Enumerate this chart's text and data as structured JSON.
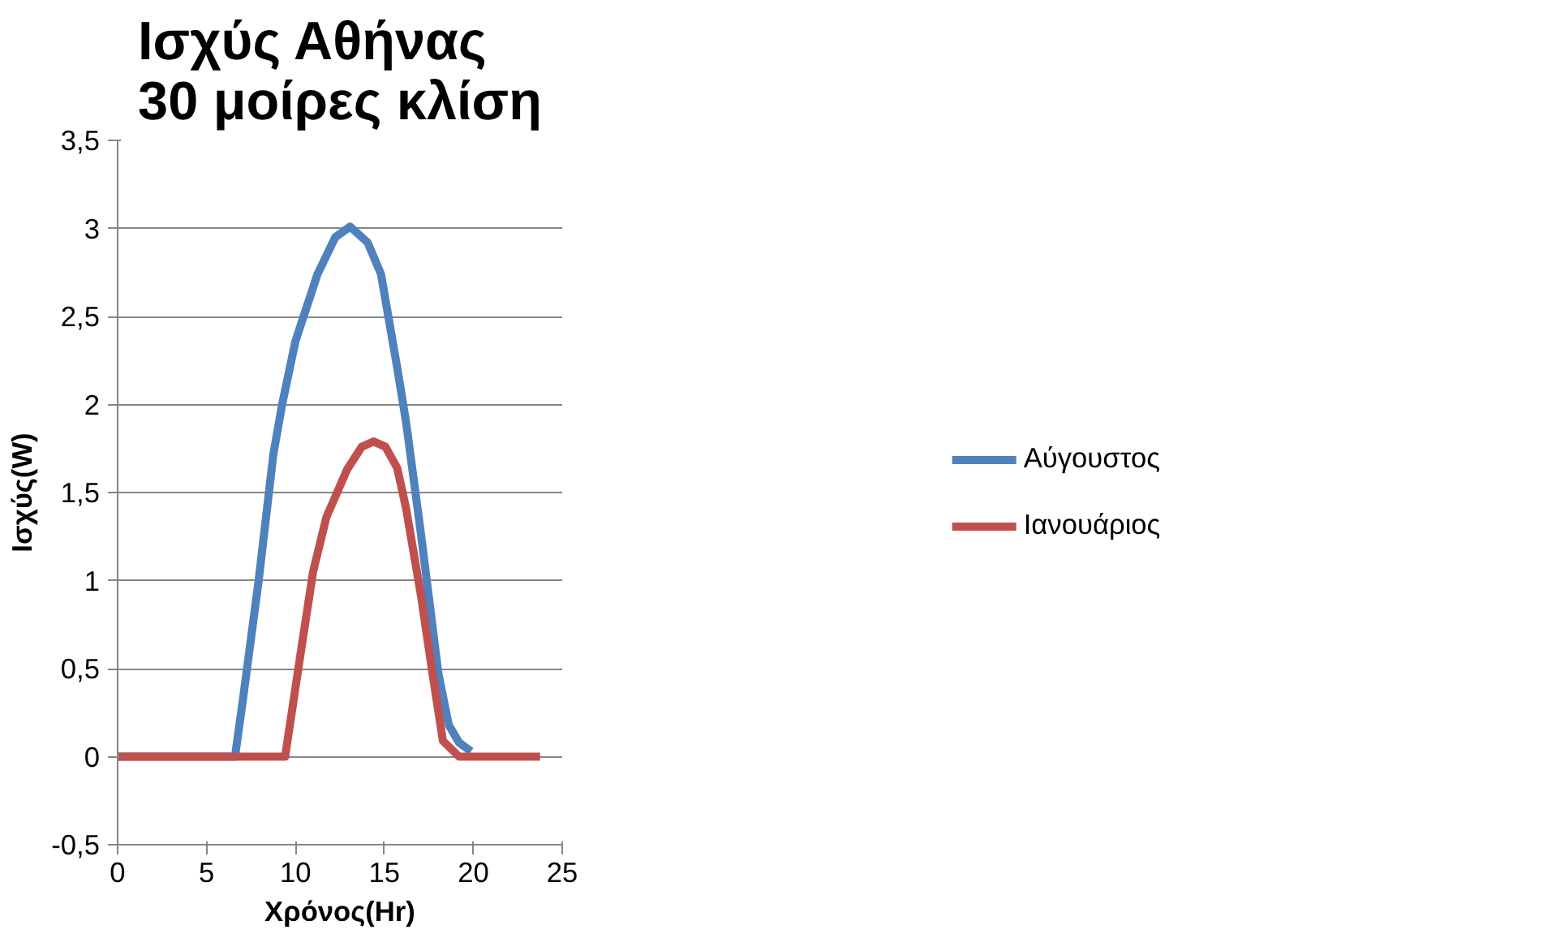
{
  "chart_data": {
    "type": "line",
    "title": "Ισχύς Αθήνας\n30 μοίρες κλίση",
    "xlabel": "Χρόνος(Hr)",
    "ylabel": "Ισχύς(W)",
    "xlim": [
      0,
      25
    ],
    "xticks": [
      0,
      5,
      10,
      15,
      20,
      25
    ],
    "ylim": [
      -0.5,
      3.5
    ],
    "yticks": [
      {
        "value": -0.5,
        "label": "-0,5"
      },
      0,
      {
        "value": 0.5,
        "label": "0,5"
      },
      1,
      {
        "value": 1.5,
        "label": "1,5"
      },
      2,
      {
        "value": 2.5,
        "label": "2,5"
      },
      3,
      {
        "value": 3.5,
        "label": "3,5"
      }
    ],
    "grid": "y",
    "legend": "right",
    "marker": "none",
    "line_style": "solid",
    "series": [
      {
        "name": "Αύγουστος",
        "color": "#4f81bd",
        "x": [
          0,
          6.6,
          7.0,
          7.93,
          8.76,
          9.25,
          10.0,
          11.24,
          12.24,
          13.07,
          14.06,
          14.81,
          15.72,
          16.22,
          17.05,
          18.04,
          18.62,
          19.2,
          19.87
        ],
        "values": [
          0,
          0,
          0.29,
          1.0,
          1.72,
          2.0,
          2.36,
          2.74,
          2.95,
          3.01,
          2.92,
          2.74,
          2.21,
          1.9,
          1.27,
          0.47,
          0.18,
          0.08,
          0.03
        ]
      },
      {
        "name": "Ιανουάριος",
        "color": "#c0504d",
        "x": [
          0,
          9.42,
          10.25,
          10.99,
          11.74,
          12.9,
          13.73,
          14.4,
          15.06,
          15.72,
          16.22,
          17.05,
          17.71,
          18.29,
          19.2,
          23.76
        ],
        "values": [
          0,
          0,
          0.56,
          1.05,
          1.36,
          1.63,
          1.76,
          1.79,
          1.76,
          1.64,
          1.41,
          0.92,
          0.47,
          0.09,
          0,
          0
        ]
      }
    ]
  }
}
